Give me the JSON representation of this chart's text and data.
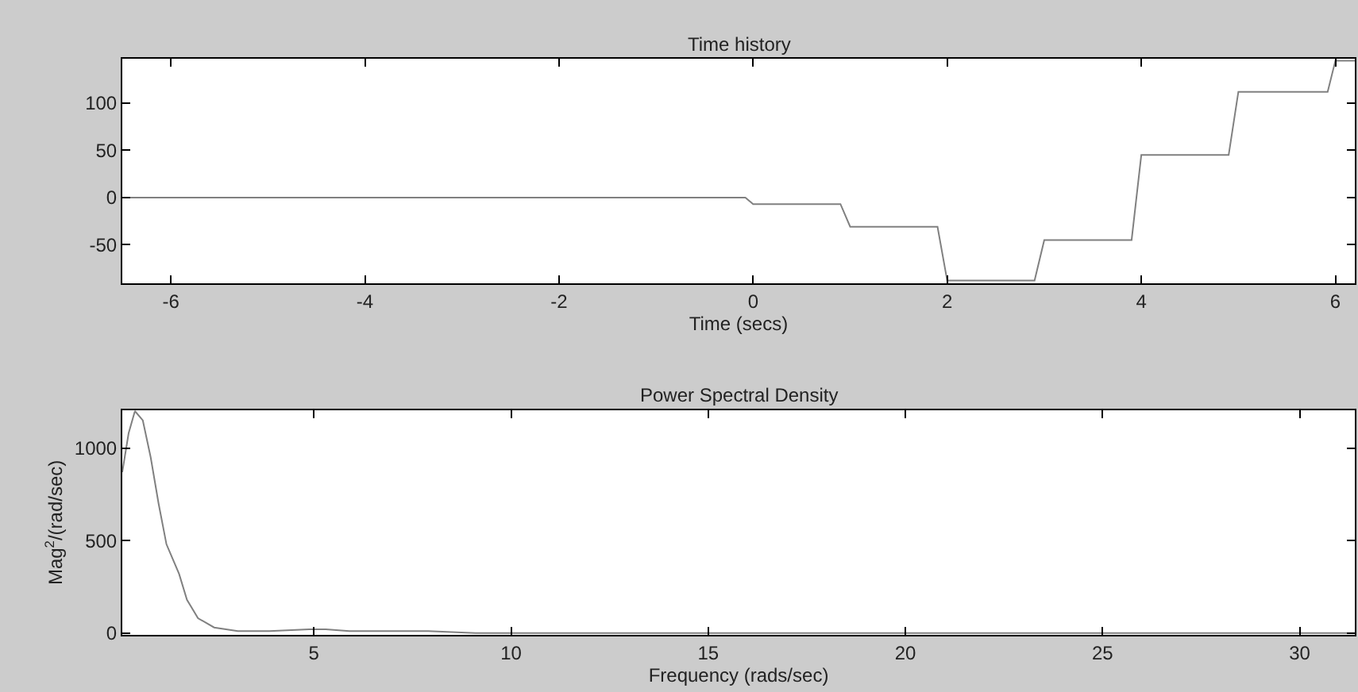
{
  "chart_data": [
    {
      "type": "line",
      "title": "Time history",
      "xlabel": "Time (secs)",
      "xlim": [
        -6.5,
        6.2
      ],
      "ylim": [
        -91,
        147
      ],
      "xticks": [
        -6,
        -4,
        -2,
        0,
        2,
        4,
        6
      ],
      "yticks": [
        -50,
        0,
        50,
        100
      ],
      "series": [
        {
          "color": "#808080",
          "x": [
            -6.5,
            -0.08,
            0.0,
            0.9,
            1.0,
            1.9,
            2.0,
            2.9,
            3.0,
            3.9,
            4.0,
            4.9,
            5.0,
            5.92,
            6.0,
            6.2
          ],
          "values": [
            0,
            0,
            -7,
            -7,
            -31,
            -31,
            -88,
            -88,
            -45,
            -45,
            45,
            45,
            112,
            112,
            145,
            145
          ]
        }
      ]
    },
    {
      "type": "line",
      "title": "Power Spectral Density",
      "xlabel": "Frequency (rads/sec)",
      "ylabel": "Mag$^{2}$/(rad/sec)",
      "xlim": [
        0.14,
        31.4
      ],
      "ylim": [
        -10,
        1205
      ],
      "xticks": [
        5,
        10,
        15,
        20,
        25,
        30
      ],
      "yticks": [
        0,
        500,
        1000
      ],
      "series": [
        {
          "color": "#808080",
          "x": [
            0.14,
            0.3,
            0.46,
            0.66,
            0.86,
            1.06,
            1.26,
            1.46,
            1.58,
            1.78,
            2.06,
            2.47,
            3.07,
            3.87,
            4.88,
            5.3,
            5.9,
            6.7,
            7.1,
            7.9,
            9.1,
            12,
            16,
            20,
            25,
            31.4
          ],
          "values": [
            870,
            1080,
            1200,
            1150,
            950,
            700,
            480,
            380,
            320,
            180,
            80,
            30,
            10,
            10,
            20,
            20,
            10,
            10,
            10,
            10,
            0,
            0,
            0,
            0,
            0,
            0
          ]
        }
      ]
    }
  ]
}
